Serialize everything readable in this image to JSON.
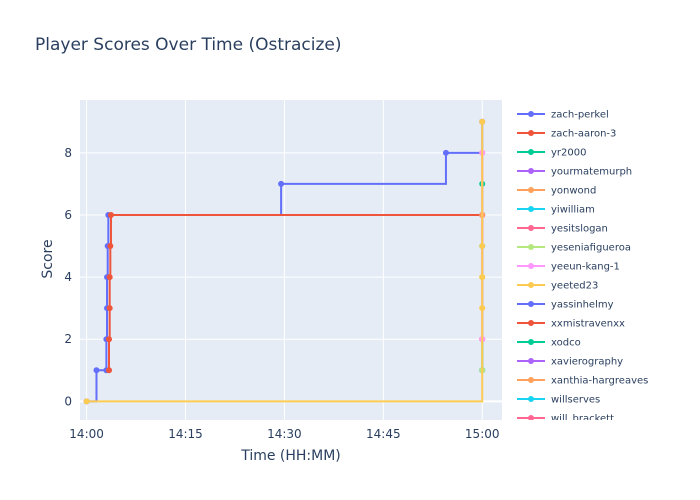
{
  "chart_data": {
    "type": "line",
    "title": "Player Scores Over Time (Ostracize)",
    "xlabel": "Time (HH:MM)",
    "ylabel": "Score",
    "x_ticks": [
      "14:00",
      "14:15",
      "14:30",
      "14:45",
      "15:00"
    ],
    "x_tick_minutes": [
      0,
      15,
      30,
      45,
      60
    ],
    "y_ticks": [
      0,
      2,
      4,
      6,
      8
    ],
    "xlim_minutes": [
      -1,
      63
    ],
    "ylim": [
      -0.6,
      9.7
    ],
    "line_shape": "step-after",
    "legend_position": "right",
    "series": [
      {
        "name": "zach-perkel",
        "color": "#636efa",
        "x": [
          0,
          1.5,
          3,
          3,
          3.1,
          3.1,
          3.2,
          3.3,
          29.5,
          54.5,
          60
        ],
        "y": [
          0,
          1,
          1,
          2,
          3,
          4,
          5,
          6,
          7,
          8,
          9
        ]
      },
      {
        "name": "zach-aaron-3",
        "color": "#ef553b",
        "x": [
          3.4,
          3.4,
          3.5,
          3.5,
          3.6,
          3.7,
          60
        ],
        "y": [
          1,
          2,
          3,
          4,
          5,
          6,
          6
        ]
      },
      {
        "name": "yr2000",
        "color": "#00cc96",
        "x": [
          60,
          60
        ],
        "y": [
          1,
          7
        ]
      },
      {
        "name": "yourmatemurph",
        "color": "#ab63fa",
        "x": [
          60,
          60
        ],
        "y": [
          1,
          6
        ]
      },
      {
        "name": "yonwond",
        "color": "#ffa15a",
        "x": [
          60,
          60
        ],
        "y": [
          2,
          6
        ]
      },
      {
        "name": "yiwilliam",
        "color": "#19d3f3",
        "x": [
          60,
          60
        ],
        "y": [
          1,
          5
        ]
      },
      {
        "name": "yesitslogan",
        "color": "#ff6692",
        "x": [
          60,
          60
        ],
        "y": [
          2,
          8
        ]
      },
      {
        "name": "yeseniafigueroa",
        "color": "#b6e880",
        "x": [
          60,
          60
        ],
        "y": [
          1,
          4
        ]
      },
      {
        "name": "yeeun-kang-1",
        "color": "#ff97ff",
        "x": [
          60,
          60
        ],
        "y": [
          2,
          8
        ]
      },
      {
        "name": "yeeted23",
        "color": "#fecb52",
        "x": [
          0,
          60,
          60,
          60,
          60
        ],
        "y": [
          0,
          3,
          4,
          5,
          9
        ]
      },
      {
        "name": "yassinhelmy",
        "color": "#636efa",
        "x": [],
        "y": []
      },
      {
        "name": "xxmistravenxx",
        "color": "#ef553b",
        "x": [],
        "y": []
      },
      {
        "name": "xodco",
        "color": "#00cc96",
        "x": [],
        "y": []
      },
      {
        "name": "xavierography",
        "color": "#ab63fa",
        "x": [],
        "y": []
      },
      {
        "name": "xanthia-hargreaves",
        "color": "#ffa15a",
        "x": [],
        "y": []
      },
      {
        "name": "willserves",
        "color": "#19d3f3",
        "x": [],
        "y": []
      },
      {
        "name": "will_brackett",
        "color": "#ff6692",
        "x": [],
        "y": []
      }
    ]
  }
}
